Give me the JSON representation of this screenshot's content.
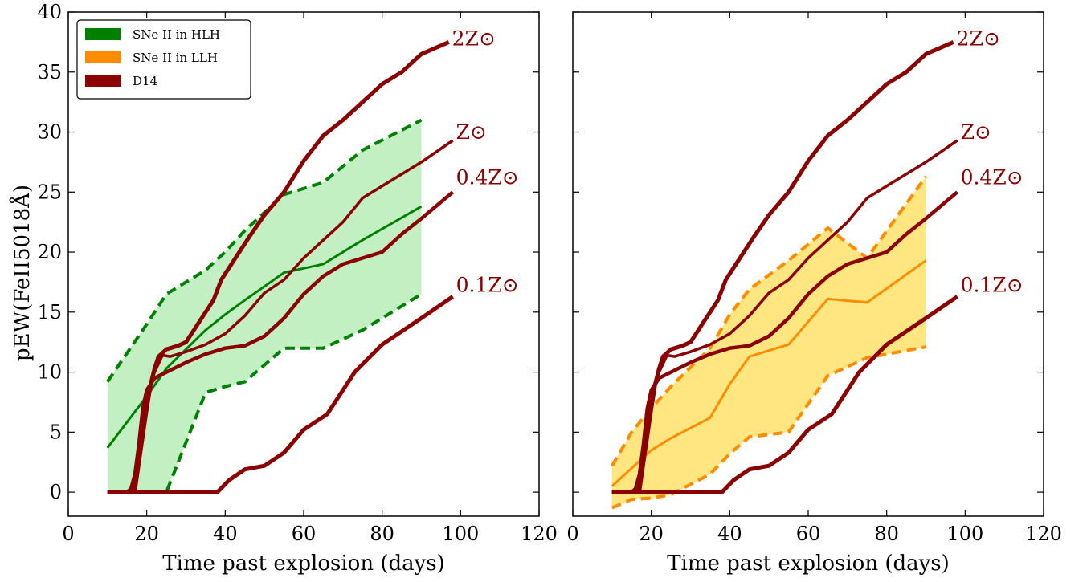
{
  "chart_data": [
    {
      "type": "line",
      "xlabel": "Time past explosion (days)",
      "ylabel": "pEW(FeII5018Å)",
      "xlim": [
        0,
        120
      ],
      "ylim": [
        -2,
        40
      ],
      "xticks": [
        "0",
        "20",
        "40",
        "60",
        "80",
        "100",
        "120"
      ],
      "yticks": [
        "0",
        "5",
        "10",
        "15",
        "20",
        "25",
        "30",
        "35",
        "40"
      ],
      "grid": false,
      "legend_position": "top-left",
      "legend": [
        {
          "label": "SNe II in HLH",
          "color": "#008000"
        },
        {
          "label": "SNe II in LLH",
          "color": "#ff8c00"
        },
        {
          "label": "D14",
          "color": "#8b0000"
        }
      ],
      "band": {
        "name": "SNe II in HLH",
        "fill": "#c2f0c2",
        "line_color": "#008000",
        "x": [
          10,
          20,
          25,
          35,
          40,
          45,
          55,
          65,
          75,
          90
        ],
        "upper": [
          9.2,
          14.0,
          16.5,
          18.5,
          20.0,
          21.8,
          24.8,
          25.8,
          28.5,
          31.0
        ],
        "median": [
          3.7,
          8.0,
          10.3,
          13.5,
          14.8,
          16.0,
          18.3,
          19.0,
          21.0,
          23.8
        ],
        "lower": [
          0.0,
          0.0,
          0.0,
          8.3,
          8.8,
          9.2,
          12.0,
          12.0,
          13.5,
          16.5
        ]
      },
      "models": [
        {
          "name": "2Z⊙",
          "x": [
            10,
            15,
            17,
            18,
            20,
            21,
            22,
            23,
            25,
            28,
            30,
            33,
            37,
            39,
            42,
            46,
            50,
            55,
            60,
            65,
            70,
            75,
            80,
            85,
            90,
            97
          ],
          "y": [
            0,
            0,
            0.2,
            2.5,
            7.0,
            9.0,
            10.3,
            11.3,
            11.9,
            12.2,
            12.5,
            14.0,
            16.0,
            17.7,
            19.2,
            21.2,
            23.1,
            25.0,
            27.6,
            29.7,
            31.0,
            32.5,
            34.0,
            35.0,
            36.5,
            37.5
          ]
        },
        {
          "name": "Z⊙",
          "x": [
            10,
            15,
            16,
            17,
            18,
            19,
            20,
            22,
            24,
            26,
            30,
            35,
            40,
            45,
            50,
            55,
            60,
            65,
            70,
            75,
            80,
            90,
            98
          ],
          "y": [
            0,
            0,
            0.2,
            1.0,
            3.0,
            6.0,
            8.0,
            10.0,
            11.4,
            11.3,
            11.7,
            12.3,
            13.2,
            14.7,
            16.6,
            17.7,
            19.5,
            21.0,
            22.5,
            24.5,
            25.5,
            27.5,
            29.3
          ]
        },
        {
          "name": "0.4Z⊙",
          "x": [
            10,
            15,
            16,
            17,
            18,
            19,
            20,
            22,
            25,
            30,
            35,
            40,
            45,
            50,
            55,
            60,
            65,
            70,
            75,
            80,
            85,
            90,
            98
          ],
          "y": [
            0,
            0,
            0.3,
            1.5,
            4.0,
            7.0,
            8.5,
            9.5,
            10.0,
            10.8,
            11.5,
            12.0,
            12.2,
            13.0,
            14.5,
            16.5,
            18.0,
            19.0,
            19.5,
            20.0,
            21.5,
            22.8,
            25.0
          ]
        },
        {
          "name": "0.1Z⊙",
          "x": [
            10,
            38,
            41,
            45,
            50,
            55,
            60,
            66,
            73,
            80,
            90,
            98
          ],
          "y": [
            0,
            0,
            1.0,
            1.9,
            2.2,
            3.3,
            5.2,
            6.5,
            10.0,
            12.3,
            14.5,
            16.3
          ]
        }
      ],
      "model_color": "#8b0000",
      "model_labels": [
        "2Z⊙",
        "Z⊙",
        "0.4Z⊙",
        "0.1Z⊙"
      ]
    },
    {
      "type": "line",
      "xlabel": "Time past explosion (days)",
      "xlim": [
        0,
        120
      ],
      "ylim": [
        -2,
        40
      ],
      "xticks": [
        "0",
        "20",
        "40",
        "60",
        "80",
        "100",
        "120"
      ],
      "grid": false,
      "band": {
        "name": "SNe II in LLH",
        "fill": "#ffe680",
        "line_color": "#ff8c00",
        "x": [
          10,
          15,
          20,
          25,
          35,
          40,
          45,
          55,
          65,
          75,
          90
        ],
        "upper": [
          2.2,
          5.0,
          7.0,
          8.8,
          12.0,
          14.8,
          16.9,
          19.3,
          22.0,
          19.5,
          26.3
        ],
        "median": [
          0.5,
          2.0,
          3.5,
          4.5,
          6.2,
          9.0,
          11.3,
          12.3,
          16.1,
          15.8,
          19.3
        ],
        "lower": [
          -1.3,
          -0.6,
          -0.5,
          -0.2,
          1.5,
          3.2,
          4.6,
          5.0,
          9.7,
          11.2,
          12.1
        ]
      },
      "models": [
        {
          "name": "2Z⊙",
          "x": [
            10,
            15,
            17,
            18,
            20,
            21,
            22,
            23,
            25,
            28,
            30,
            33,
            37,
            39,
            42,
            46,
            50,
            55,
            60,
            65,
            70,
            75,
            80,
            85,
            90,
            97
          ],
          "y": [
            0,
            0,
            0.2,
            2.5,
            7.0,
            9.0,
            10.3,
            11.3,
            11.9,
            12.2,
            12.5,
            14.0,
            16.0,
            17.7,
            19.2,
            21.2,
            23.1,
            25.0,
            27.6,
            29.7,
            31.0,
            32.5,
            34.0,
            35.0,
            36.5,
            37.5
          ]
        },
        {
          "name": "Z⊙",
          "x": [
            10,
            15,
            16,
            17,
            18,
            19,
            20,
            22,
            24,
            26,
            30,
            35,
            40,
            45,
            50,
            55,
            60,
            65,
            70,
            75,
            80,
            90,
            98
          ],
          "y": [
            0,
            0,
            0.2,
            1.0,
            3.0,
            6.0,
            8.0,
            10.0,
            11.4,
            11.3,
            11.7,
            12.3,
            13.2,
            14.7,
            16.6,
            17.7,
            19.5,
            21.0,
            22.5,
            24.5,
            25.5,
            27.5,
            29.3
          ]
        },
        {
          "name": "0.4Z⊙",
          "x": [
            10,
            15,
            16,
            17,
            18,
            19,
            20,
            22,
            25,
            30,
            35,
            40,
            45,
            50,
            55,
            60,
            65,
            70,
            75,
            80,
            85,
            90,
            98
          ],
          "y": [
            0,
            0,
            0.3,
            1.5,
            4.0,
            7.0,
            8.5,
            9.5,
            10.0,
            10.8,
            11.5,
            12.0,
            12.2,
            13.0,
            14.5,
            16.5,
            18.0,
            19.0,
            19.5,
            20.0,
            21.5,
            22.8,
            25.0
          ]
        },
        {
          "name": "0.1Z⊙",
          "x": [
            10,
            38,
            41,
            45,
            50,
            55,
            60,
            66,
            73,
            80,
            90,
            98
          ],
          "y": [
            0,
            0,
            1.0,
            1.9,
            2.2,
            3.3,
            5.2,
            6.5,
            10.0,
            12.3,
            14.5,
            16.3
          ]
        }
      ],
      "model_color": "#8b0000",
      "model_labels": [
        "2Z⊙",
        "Z⊙",
        "0.4Z⊙",
        "0.1Z⊙"
      ]
    }
  ]
}
